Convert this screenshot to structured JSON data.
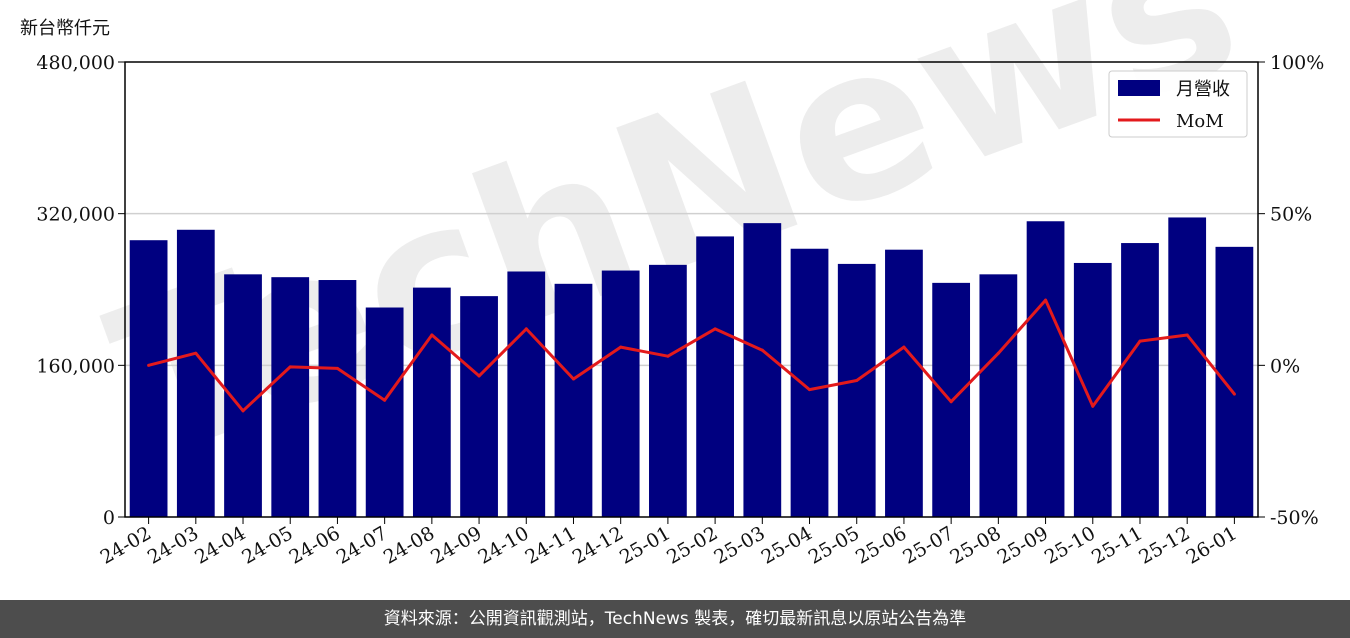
{
  "chart_data": {
    "type": "bar",
    "y_unit_label": "新台幣仟元",
    "categories": [
      "24-02",
      "24-03",
      "24-04",
      "24-05",
      "24-06",
      "24-07",
      "24-08",
      "24-09",
      "24-10",
      "24-11",
      "24-12",
      "25-01",
      "25-02",
      "25-03",
      "25-04",
      "25-05",
      "25-06",
      "25-07",
      "25-08",
      "25-09",
      "25-10",
      "25-11",
      "25-12",
      "26-01"
    ],
    "series": [
      {
        "name": "月營收",
        "type": "bar",
        "axis": "left",
        "color": "#000080",
        "values": [
          292000,
          303000,
          256000,
          253000,
          250000,
          221000,
          242000,
          233000,
          259000,
          246000,
          260000,
          266000,
          296000,
          310000,
          283000,
          267000,
          282000,
          247000,
          256000,
          312000,
          268000,
          289000,
          316000,
          285000
        ]
      },
      {
        "name": "MoM",
        "type": "line",
        "axis": "right",
        "color": "#e31a1c",
        "values": [
          0,
          4,
          -15,
          -0.5,
          -1,
          -11.5,
          10,
          -3.5,
          12,
          -4.5,
          6,
          3,
          12,
          5,
          -8,
          -5,
          6,
          -12,
          4,
          21.5,
          -13.5,
          8,
          10,
          -9.5
        ]
      }
    ],
    "ylim_left": [
      0,
      480000
    ],
    "yticks_left": [
      "0",
      "160,000",
      "320,000",
      "480,000"
    ],
    "ylim_right": [
      -50,
      100
    ],
    "yticks_right": [
      "-50%",
      "0%",
      "50%",
      "100%"
    ],
    "grid": "horizontal",
    "legend_position": "top-right"
  },
  "watermark": "TechNews",
  "footer": {
    "text": "資料來源：公開資訊觀測站，TechNews 製表，確切最新訊息以原站公告為準"
  }
}
